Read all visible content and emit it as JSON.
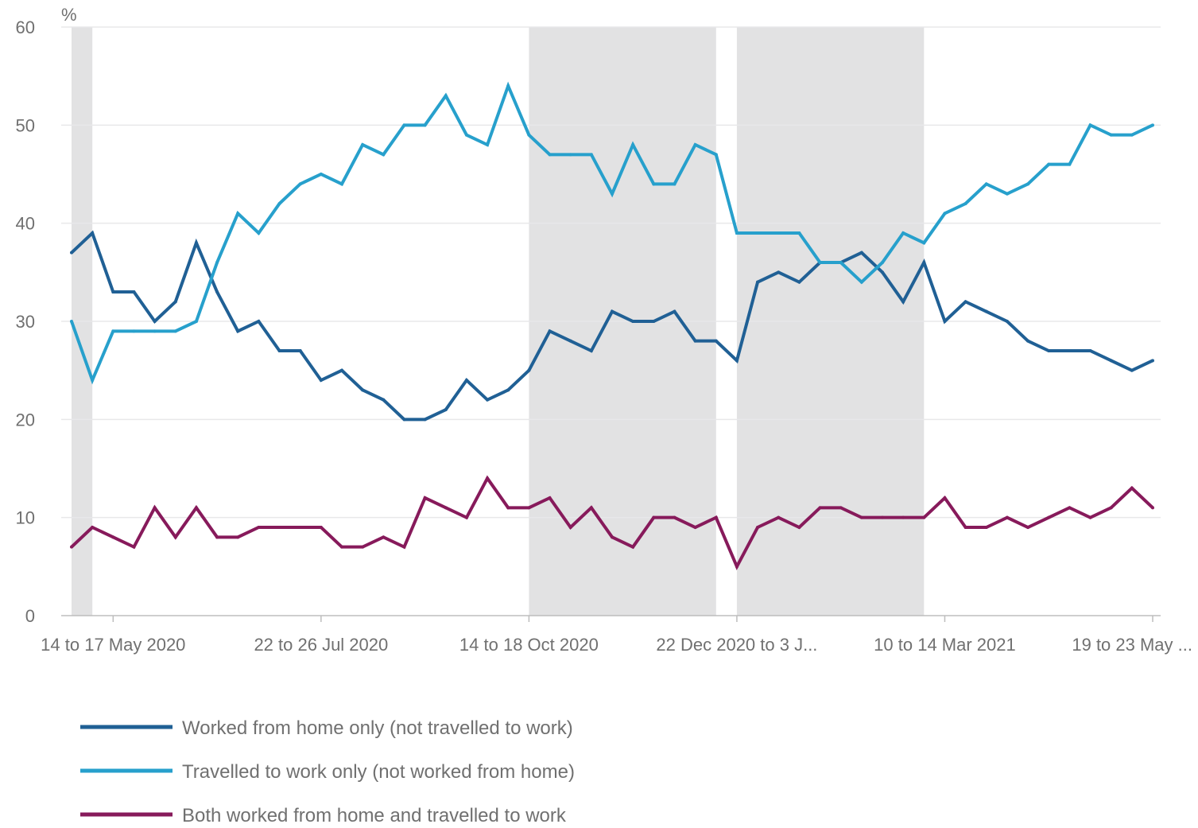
{
  "chart_data": {
    "type": "line",
    "ylabel": "%",
    "ylim": [
      0,
      60
    ],
    "y_ticks": [
      0,
      10,
      20,
      30,
      40,
      50,
      60
    ],
    "x": [
      0,
      1,
      2,
      3,
      4,
      5,
      6,
      7,
      8,
      9,
      10,
      11,
      12,
      13,
      14,
      15,
      16,
      17,
      18,
      19,
      20,
      21,
      22,
      23,
      24,
      25,
      26,
      27,
      28,
      29,
      30,
      31,
      32,
      33,
      34,
      35,
      36,
      37,
      38,
      39,
      40,
      41,
      42,
      43,
      44,
      45,
      46,
      47,
      48,
      49,
      50,
      51,
      52
    ],
    "x_tick_labels": [
      {
        "x": 2,
        "label": "14 to 17 May 2020"
      },
      {
        "x": 12,
        "label": "22 to 26 Jul 2020"
      },
      {
        "x": 22,
        "label": "14 to 18 Oct 2020"
      },
      {
        "x": 32,
        "label": "22 Dec 2020 to 3 J..."
      },
      {
        "x": 42,
        "label": "10 to 14 Mar 2021"
      },
      {
        "x": 52,
        "label": "19 to 23 May ..."
      }
    ],
    "shaded_periods": [
      {
        "from": 0,
        "to": 1
      },
      {
        "from": 22,
        "to": 31
      },
      {
        "from": 32,
        "to": 41
      }
    ],
    "grid": true,
    "legend_position": "bottom",
    "series": [
      {
        "name": "Worked from home only (not travelled to work)",
        "color": "#206095",
        "values": [
          37,
          39,
          33,
          33,
          30,
          32,
          38,
          33,
          29,
          30,
          27,
          27,
          24,
          25,
          23,
          22,
          20,
          20,
          21,
          24,
          22,
          23,
          25,
          29,
          28,
          27,
          31,
          30,
          30,
          31,
          28,
          28,
          26,
          34,
          35,
          34,
          36,
          36,
          37,
          35,
          32,
          36,
          30,
          32,
          31,
          30,
          28,
          27,
          27,
          27,
          26,
          25,
          26
        ]
      },
      {
        "name": "Travelled to work only (not worked from home)",
        "color": "#27a0cc",
        "values": [
          30,
          24,
          29,
          29,
          29,
          29,
          30,
          36,
          41,
          39,
          42,
          44,
          45,
          44,
          48,
          47,
          50,
          50,
          53,
          49,
          48,
          54,
          49,
          47,
          47,
          47,
          43,
          48,
          44,
          44,
          48,
          47,
          39,
          39,
          39,
          39,
          36,
          36,
          34,
          36,
          39,
          38,
          41,
          42,
          44,
          43,
          44,
          46,
          46,
          50,
          49,
          49,
          50
        ]
      },
      {
        "name": "Both worked from home and travelled to work",
        "color": "#871a5b",
        "values": [
          7,
          9,
          8,
          7,
          11,
          8,
          11,
          8,
          8,
          9,
          9,
          9,
          9,
          7,
          7,
          8,
          7,
          12,
          11,
          10,
          14,
          11,
          11,
          12,
          9,
          11,
          8,
          7,
          10,
          10,
          9,
          10,
          5,
          9,
          10,
          9,
          11,
          11,
          10,
          10,
          10,
          10,
          12,
          9,
          9,
          10,
          9,
          10,
          11,
          10,
          11,
          13,
          11
        ]
      }
    ]
  }
}
